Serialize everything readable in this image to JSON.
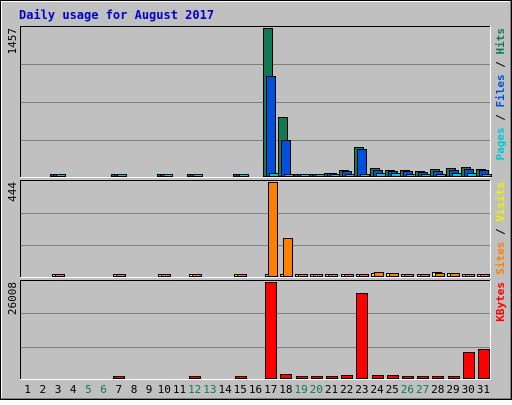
{
  "title": "Daily usage for August 2017",
  "colors": {
    "background": "#c0c0c0",
    "plot_background": "#c0c0c0",
    "title_text": "#0000cc",
    "hits": "#117a52",
    "files": "#0050e0",
    "pages": "#00c8d8",
    "visits": "#f0f000",
    "sites": "#ff8000",
    "kbytes": "#ff0000",
    "weekend_label": "#117a52",
    "weekday_label": "#000000"
  },
  "chart_data": [
    {
      "type": "bar",
      "panel": "hits-files-pages",
      "title": "Daily usage for August 2017",
      "ymax_label": "1457",
      "ylim": [
        0,
        1457
      ],
      "legend": [
        "Pages",
        "Files",
        "Hits"
      ],
      "categories": [
        "1",
        "2",
        "3",
        "4",
        "5",
        "6",
        "7",
        "8",
        "9",
        "10",
        "11",
        "12",
        "13",
        "14",
        "15",
        "16",
        "17",
        "18",
        "19",
        "20",
        "21",
        "22",
        "23",
        "24",
        "25",
        "26",
        "27",
        "28",
        "29",
        "30",
        "31"
      ],
      "series": [
        {
          "name": "Hits",
          "values": [
            0,
            0,
            14,
            0,
            0,
            0,
            14,
            0,
            0,
            14,
            0,
            14,
            0,
            0,
            14,
            0,
            1457,
            580,
            14,
            14,
            30,
            60,
            290,
            80,
            60,
            55,
            50,
            65,
            80,
            90,
            70
          ]
        },
        {
          "name": "Files",
          "values": [
            0,
            0,
            10,
            0,
            0,
            0,
            10,
            0,
            0,
            10,
            0,
            10,
            0,
            0,
            10,
            0,
            980,
            350,
            10,
            10,
            25,
            45,
            265,
            60,
            45,
            45,
            40,
            50,
            60,
            70,
            55
          ]
        },
        {
          "name": "Pages",
          "values": [
            0,
            0,
            4,
            0,
            0,
            0,
            4,
            0,
            0,
            4,
            0,
            4,
            0,
            0,
            4,
            0,
            25,
            15,
            4,
            4,
            12,
            20,
            15,
            30,
            25,
            20,
            20,
            22,
            25,
            25,
            20
          ]
        }
      ]
    },
    {
      "type": "bar",
      "panel": "visits-sites",
      "ymax_label": "444",
      "ylim": [
        0,
        444
      ],
      "legend": [
        "Sites",
        "Visits"
      ],
      "categories": [
        "1",
        "2",
        "3",
        "4",
        "5",
        "6",
        "7",
        "8",
        "9",
        "10",
        "11",
        "12",
        "13",
        "14",
        "15",
        "16",
        "17",
        "18",
        "19",
        "20",
        "21",
        "22",
        "23",
        "24",
        "25",
        "26",
        "27",
        "28",
        "29",
        "30",
        "31"
      ],
      "series": [
        {
          "name": "Visits",
          "values": [
            0,
            0,
            3,
            0,
            0,
            0,
            3,
            0,
            0,
            3,
            0,
            5,
            0,
            0,
            3,
            0,
            6,
            4,
            3,
            3,
            3,
            5,
            10,
            16,
            12,
            10,
            10,
            20,
            12,
            10,
            10
          ]
        },
        {
          "name": "Sites",
          "values": [
            0,
            0,
            3,
            0,
            0,
            0,
            3,
            0,
            0,
            3,
            0,
            10,
            0,
            0,
            3,
            0,
            444,
            178,
            3,
            3,
            3,
            5,
            10,
            18,
            12,
            10,
            10,
            14,
            12,
            10,
            10
          ]
        }
      ]
    },
    {
      "type": "bar",
      "panel": "kbytes",
      "ymax_label": "26008",
      "ylim": [
        0,
        26008
      ],
      "legend": [
        "KBytes"
      ],
      "categories": [
        "1",
        "2",
        "3",
        "4",
        "5",
        "6",
        "7",
        "8",
        "9",
        "10",
        "11",
        "12",
        "13",
        "14",
        "15",
        "16",
        "17",
        "18",
        "19",
        "20",
        "21",
        "22",
        "23",
        "24",
        "25",
        "26",
        "27",
        "28",
        "29",
        "30",
        "31"
      ],
      "series": [
        {
          "name": "KBytes",
          "values": [
            0,
            0,
            0,
            0,
            0,
            0,
            250,
            0,
            0,
            0,
            0,
            250,
            0,
            0,
            250,
            0,
            26008,
            1200,
            250,
            250,
            350,
            800,
            23000,
            800,
            800,
            500,
            350,
            600,
            300,
            7000,
            7800
          ]
        }
      ]
    }
  ],
  "weekend_days": [
    5,
    6,
    12,
    13,
    19,
    20,
    26,
    27
  ]
}
